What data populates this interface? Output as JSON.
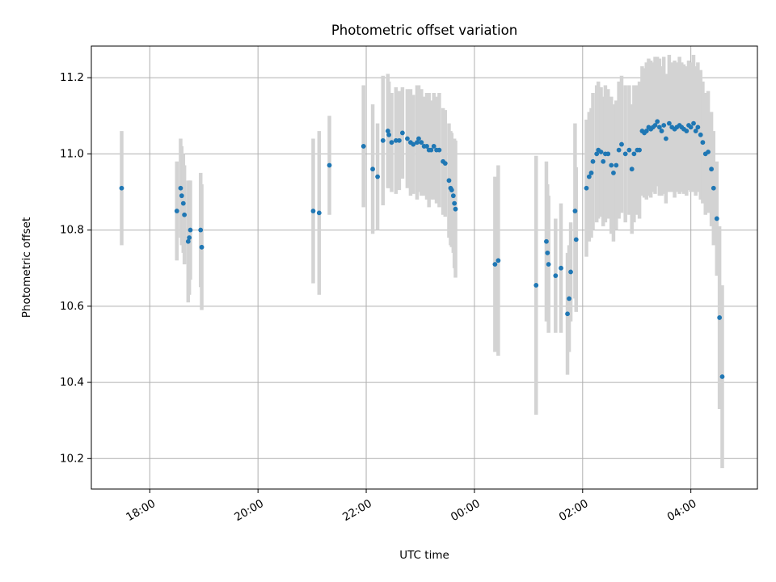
{
  "chart_data": {
    "type": "scatter",
    "title": "Photometric offset variation",
    "xlabel": "UTC time",
    "ylabel": "Photometric offset",
    "x_unit": "hours since 00:00 UTC",
    "xlim": [
      -7.08,
      5.23
    ],
    "ylim": [
      10.12,
      11.283
    ],
    "grid": true,
    "x_ticks": [
      {
        "value": -6,
        "label": "18:00"
      },
      {
        "value": -4,
        "label": "20:00"
      },
      {
        "value": -2,
        "label": "22:00"
      },
      {
        "value": 0,
        "label": "00:00"
      },
      {
        "value": 2,
        "label": "02:00"
      },
      {
        "value": 4,
        "label": "04:00"
      }
    ],
    "y_ticks": [
      {
        "value": 10.2,
        "label": "10.2"
      },
      {
        "value": 10.4,
        "label": "10.4"
      },
      {
        "value": 10.6,
        "label": "10.6"
      },
      {
        "value": 10.8,
        "label": "10.8"
      },
      {
        "value": 11.0,
        "label": "11.0"
      },
      {
        "value": 11.2,
        "label": "11.2"
      }
    ],
    "colors": {
      "point": "#1f77b4",
      "errorbar": "#d3d3d3",
      "grid": "#b0b0b0"
    },
    "series": [
      {
        "name": "Photometric offset",
        "points": [
          [
            -6.52,
            10.91,
            0.15
          ],
          [
            -5.5,
            10.85,
            0.13
          ],
          [
            -5.43,
            10.91,
            0.13
          ],
          [
            -5.41,
            10.89,
            0.13
          ],
          [
            -5.38,
            10.87,
            0.13
          ],
          [
            -5.36,
            10.84,
            0.13
          ],
          [
            -5.29,
            10.77,
            0.16
          ],
          [
            -5.27,
            10.78,
            0.15
          ],
          [
            -5.25,
            10.8,
            0.13
          ],
          [
            -5.06,
            10.8,
            0.15
          ],
          [
            -5.04,
            10.755,
            0.165
          ],
          [
            -2.98,
            10.85,
            0.19
          ],
          [
            -2.87,
            10.845,
            0.215
          ],
          [
            -2.68,
            10.97,
            0.13
          ],
          [
            -2.05,
            11.02,
            0.16
          ],
          [
            -1.88,
            10.96,
            0.17
          ],
          [
            -1.79,
            10.94,
            0.14
          ],
          [
            -1.69,
            11.035,
            0.17
          ],
          [
            -1.6,
            11.06,
            0.15
          ],
          [
            -1.58,
            11.05,
            0.14
          ],
          [
            -1.53,
            11.03,
            0.13
          ],
          [
            -1.45,
            11.035,
            0.14
          ],
          [
            -1.39,
            11.035,
            0.13
          ],
          [
            -1.33,
            11.055,
            0.12
          ],
          [
            -1.24,
            11.04,
            0.13
          ],
          [
            -1.18,
            11.03,
            0.14
          ],
          [
            -1.13,
            11.025,
            0.13
          ],
          [
            -1.06,
            11.03,
            0.15
          ],
          [
            -1.03,
            11.04,
            0.14
          ],
          [
            -0.98,
            11.03,
            0.14
          ],
          [
            -0.93,
            11.02,
            0.13
          ],
          [
            -0.88,
            11.02,
            0.14
          ],
          [
            -0.84,
            11.01,
            0.15
          ],
          [
            -0.8,
            11.01,
            0.13
          ],
          [
            -0.75,
            11.02,
            0.14
          ],
          [
            -0.7,
            11.01,
            0.14
          ],
          [
            -0.65,
            11.01,
            0.15
          ],
          [
            -0.58,
            10.98,
            0.14
          ],
          [
            -0.54,
            10.975,
            0.14
          ],
          [
            -0.47,
            10.93,
            0.15
          ],
          [
            -0.44,
            10.91,
            0.15
          ],
          [
            -0.42,
            10.905,
            0.15
          ],
          [
            -0.39,
            10.89,
            0.15
          ],
          [
            -0.37,
            10.87,
            0.17
          ],
          [
            -0.35,
            10.855,
            0.18
          ],
          [
            0.38,
            10.71,
            0.23
          ],
          [
            0.44,
            10.72,
            0.25
          ],
          [
            1.14,
            10.655,
            0.34
          ],
          [
            1.33,
            10.77,
            0.21
          ],
          [
            1.35,
            10.74,
            0.18
          ],
          [
            1.37,
            10.71,
            0.18
          ],
          [
            1.5,
            10.68,
            0.15
          ],
          [
            1.6,
            10.7,
            0.17
          ],
          [
            1.72,
            10.58,
            0.16
          ],
          [
            1.75,
            10.62,
            0.14
          ],
          [
            1.78,
            10.69,
            0.13
          ],
          [
            1.86,
            10.85,
            0.23
          ],
          [
            1.88,
            10.775,
            0.19
          ],
          [
            2.07,
            10.91,
            0.18
          ],
          [
            2.12,
            10.94,
            0.17
          ],
          [
            2.16,
            10.95,
            0.17
          ],
          [
            2.19,
            10.98,
            0.18
          ],
          [
            2.26,
            11.0,
            0.18
          ],
          [
            2.29,
            11.01,
            0.18
          ],
          [
            2.34,
            11.005,
            0.17
          ],
          [
            2.38,
            10.98,
            0.17
          ],
          [
            2.42,
            11.0,
            0.18
          ],
          [
            2.47,
            11.0,
            0.17
          ],
          [
            2.53,
            10.97,
            0.18
          ],
          [
            2.57,
            10.95,
            0.18
          ],
          [
            2.62,
            10.97,
            0.17
          ],
          [
            2.67,
            11.01,
            0.18
          ],
          [
            2.72,
            11.025,
            0.18
          ],
          [
            2.79,
            11.0,
            0.18
          ],
          [
            2.86,
            11.01,
            0.17
          ],
          [
            2.91,
            10.96,
            0.17
          ],
          [
            2.95,
            11.0,
            0.18
          ],
          [
            3.01,
            11.01,
            0.17
          ],
          [
            3.05,
            11.01,
            0.18
          ],
          [
            3.1,
            11.06,
            0.17
          ],
          [
            3.14,
            11.055,
            0.17
          ],
          [
            3.18,
            11.06,
            0.18
          ],
          [
            3.22,
            11.07,
            0.18
          ],
          [
            3.26,
            11.065,
            0.18
          ],
          [
            3.3,
            11.07,
            0.17
          ],
          [
            3.34,
            11.075,
            0.18
          ],
          [
            3.38,
            11.085,
            0.17
          ],
          [
            3.42,
            11.07,
            0.18
          ],
          [
            3.46,
            11.06,
            0.17
          ],
          [
            3.5,
            11.075,
            0.18
          ],
          [
            3.54,
            11.04,
            0.17
          ],
          [
            3.6,
            11.08,
            0.18
          ],
          [
            3.65,
            11.07,
            0.17
          ],
          [
            3.7,
            11.065,
            0.18
          ],
          [
            3.74,
            11.07,
            0.17
          ],
          [
            3.79,
            11.075,
            0.18
          ],
          [
            3.83,
            11.07,
            0.17
          ],
          [
            3.87,
            11.065,
            0.17
          ],
          [
            3.92,
            11.06,
            0.17
          ],
          [
            3.96,
            11.075,
            0.17
          ],
          [
            4.0,
            11.07,
            0.17
          ],
          [
            4.05,
            11.08,
            0.18
          ],
          [
            4.09,
            11.06,
            0.17
          ],
          [
            4.13,
            11.07,
            0.17
          ],
          [
            4.18,
            11.05,
            0.17
          ],
          [
            4.22,
            11.03,
            0.16
          ],
          [
            4.27,
            11.0,
            0.16
          ],
          [
            4.32,
            11.005,
            0.16
          ],
          [
            4.38,
            10.96,
            0.15
          ],
          [
            4.42,
            10.91,
            0.15
          ],
          [
            4.48,
            10.83,
            0.15
          ],
          [
            4.53,
            10.57,
            0.24
          ],
          [
            4.58,
            10.415,
            0.24
          ]
        ]
      }
    ]
  }
}
